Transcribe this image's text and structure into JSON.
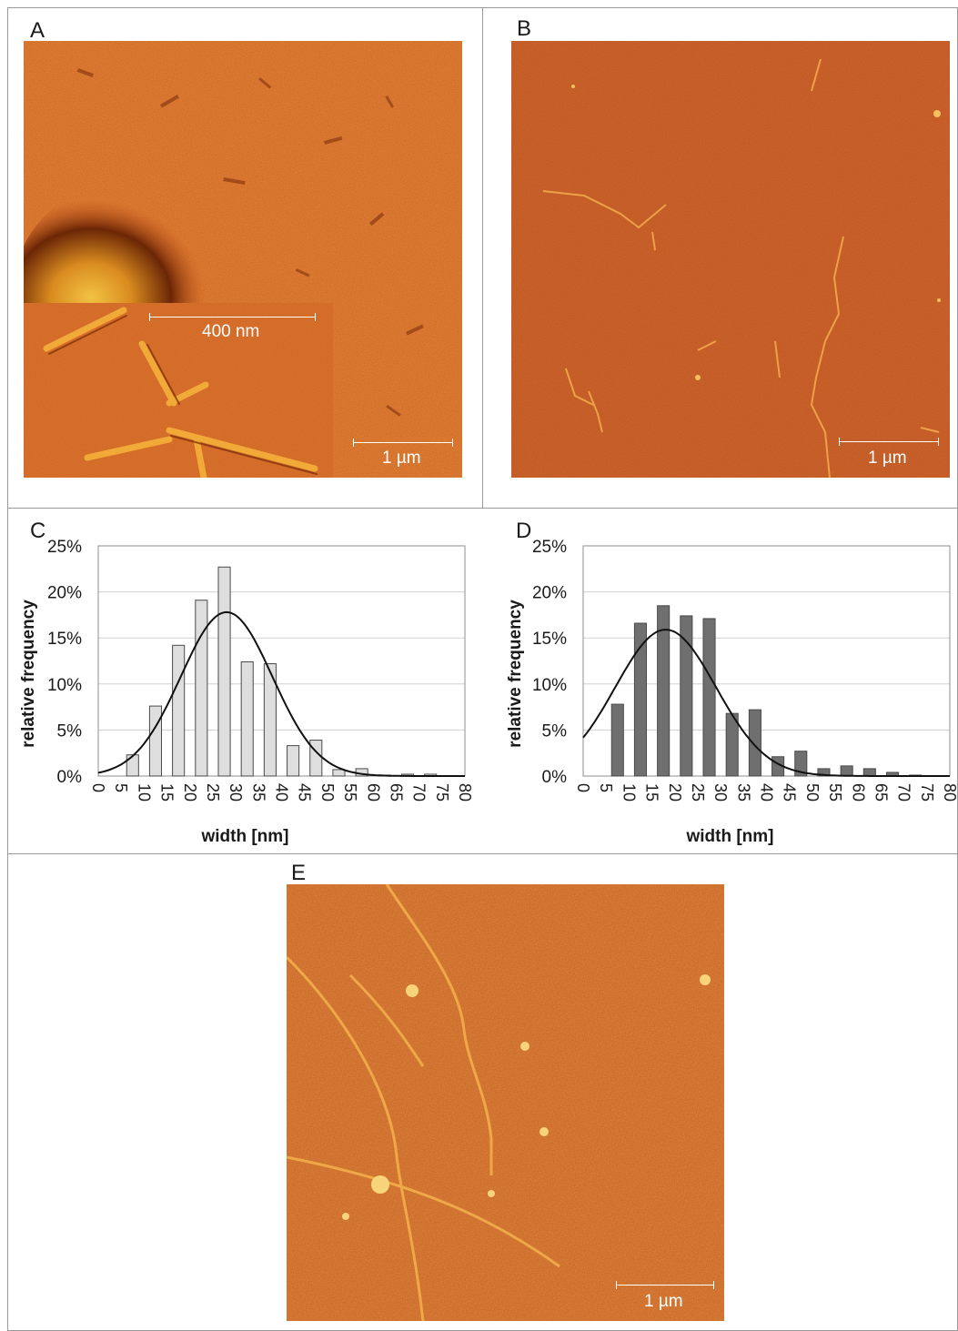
{
  "panels": {
    "A": {
      "letter": "A",
      "inset_scale_label": "400 nm",
      "scale_label": "1 µm"
    },
    "B": {
      "letter": "B",
      "scale_label": "1 µm"
    },
    "E": {
      "letter": "E",
      "scale_label": "1 µm"
    }
  },
  "colors": {
    "afm_base": "#c8561a",
    "afm_highlight": "#f6b13c",
    "afm_shadow": "#7a2a08",
    "bar_light": "#dedede",
    "bar_dark": "#6f6f6f",
    "curve": "#111111",
    "grid": "#d0d0d0"
  },
  "chart_data": [
    {
      "panel": "C",
      "type": "bar",
      "xlabel": "width [nm]",
      "ylabel": "relative frequency",
      "x_ticks": [
        "0",
        "5",
        "10",
        "15",
        "20",
        "25",
        "30",
        "35",
        "40",
        "45",
        "50",
        "55",
        "60",
        "65",
        "70",
        "75",
        "80"
      ],
      "y_ticks": [
        "0%",
        "5%",
        "10%",
        "15%",
        "20%",
        "25%"
      ],
      "xlim": [
        0,
        80
      ],
      "ylim": [
        0,
        25
      ],
      "grid": true,
      "bar_color": "#dedede",
      "categories": [
        7.5,
        12.5,
        17.5,
        22.5,
        27.5,
        32.5,
        37.5,
        42.5,
        47.5,
        52.5,
        57.5,
        62.5,
        67.5,
        72.5,
        77.5
      ],
      "values": [
        2.3,
        7.6,
        14.2,
        19.1,
        22.7,
        12.4,
        12.2,
        3.3,
        3.9,
        0.7,
        0.8,
        0.1,
        0.2,
        0.2,
        0.0
      ],
      "fit": {
        "type": "gaussian",
        "peak": 17.8,
        "mean": 28,
        "sd": 10
      }
    },
    {
      "panel": "D",
      "type": "bar",
      "xlabel": "width [nm]",
      "ylabel": "relative frequency",
      "x_ticks": [
        "0",
        "5",
        "10",
        "15",
        "20",
        "25",
        "30",
        "35",
        "40",
        "45",
        "50",
        "55",
        "60",
        "65",
        "70",
        "75",
        "80"
      ],
      "y_ticks": [
        "0%",
        "5%",
        "10%",
        "15%",
        "20%",
        "25%"
      ],
      "xlim": [
        0,
        80
      ],
      "ylim": [
        0,
        25
      ],
      "grid": true,
      "bar_color": "#6f6f6f",
      "categories": [
        7.5,
        12.5,
        17.5,
        22.5,
        27.5,
        32.5,
        37.5,
        42.5,
        47.5,
        52.5,
        57.5,
        62.5,
        67.5,
        72.5,
        77.5
      ],
      "values": [
        7.8,
        16.6,
        18.5,
        17.4,
        17.1,
        6.8,
        7.2,
        2.1,
        2.7,
        0.8,
        1.1,
        0.8,
        0.4,
        0.1,
        0.0
      ],
      "fit": {
        "type": "gaussian",
        "peak": 15.9,
        "mean": 18,
        "sd": 11
      }
    }
  ]
}
